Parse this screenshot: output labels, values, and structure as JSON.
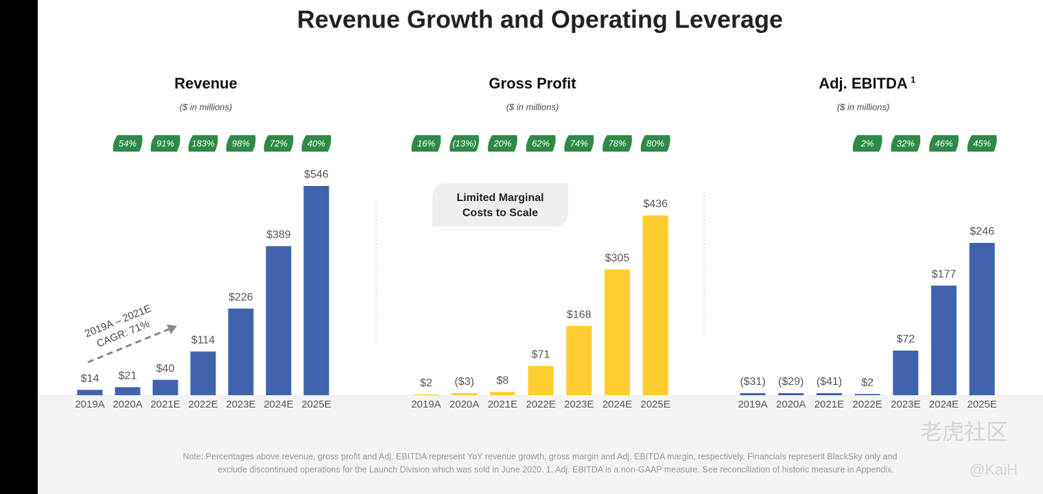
{
  "title": "Revenue Growth and Operating Leverage",
  "chart_data": [
    {
      "type": "bar",
      "title": "Revenue",
      "subtitle": "($ in millions)",
      "color": "#3f63ad",
      "categories": [
        "2019A",
        "2020A",
        "2021E",
        "2022E",
        "2023E",
        "2024E",
        "2025E"
      ],
      "values": [
        14,
        21,
        40,
        114,
        226,
        389,
        546
      ],
      "value_labels": [
        "$14",
        "$21",
        "$40",
        "$114",
        "$226",
        "$389",
        "$546"
      ],
      "growth": [
        null,
        54,
        91,
        183,
        98,
        72,
        40
      ],
      "growth_labels": [
        null,
        "54%",
        "91%",
        "183%",
        "98%",
        "72%",
        "40%"
      ],
      "annotation": [
        "2019A – 2021E",
        "CAGR: 71%"
      ]
    },
    {
      "type": "bar",
      "title": "Gross Profit",
      "subtitle": "($ in millions)",
      "color": "#fecd2f",
      "categories": [
        "2019A",
        "2020A",
        "2021E",
        "2022E",
        "2023E",
        "2024E",
        "2025E"
      ],
      "values": [
        2,
        -3,
        8,
        71,
        168,
        305,
        436
      ],
      "value_labels": [
        "$2",
        "($3)",
        "$8",
        "$71",
        "$168",
        "$305",
        "$436"
      ],
      "growth": [
        16,
        -13,
        20,
        62,
        74,
        78,
        80
      ],
      "growth_labels": [
        "16%",
        "(13%)",
        "20%",
        "62%",
        "74%",
        "78%",
        "80%"
      ],
      "annotation": [
        "Limited Marginal",
        "Costs to Scale"
      ]
    },
    {
      "type": "bar",
      "title": "Adj. EBITDA",
      "title_note": "1",
      "subtitle": "($ in millions)",
      "color": "#3f63ad",
      "categories": [
        "2019A",
        "2020A",
        "2021E",
        "2022E",
        "2023E",
        "2024E",
        "2025E"
      ],
      "values": [
        -31,
        -29,
        -41,
        2,
        72,
        177,
        246
      ],
      "value_labels": [
        "($31)",
        "($29)",
        "($41)",
        "$2",
        "$72",
        "$177",
        "$246"
      ],
      "growth": [
        null,
        null,
        null,
        2,
        32,
        46,
        45
      ],
      "growth_labels": [
        null,
        null,
        null,
        "2%",
        "32%",
        "46%",
        "45%"
      ]
    }
  ],
  "note": [
    "Note: Percentages above revenue, gross profit and Adj. EBITDA represent YoY revenue growth, gross margin and Adj. EBITDA margin, respectively.   Financials represent BlackSky only and",
    "exclude discontinued operations for the Launch Division which was sold in June 2020.     1. Adj. EBITDA is a non-GAAP measure. See reconciliation of historic measure in Appendix."
  ],
  "watermark": [
    "老虎社区",
    "@KaiH"
  ]
}
